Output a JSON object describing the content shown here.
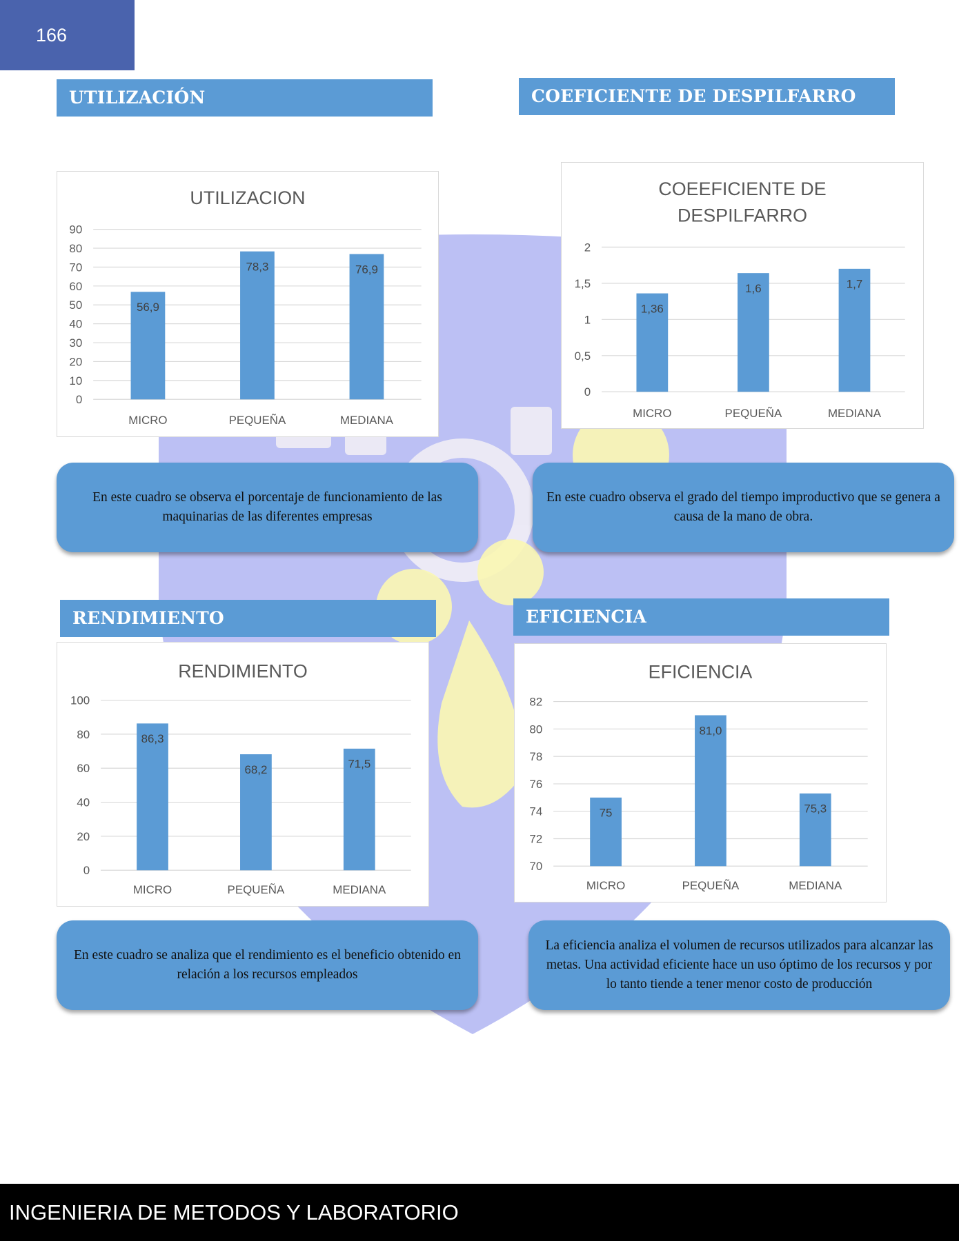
{
  "page": {
    "number": "166",
    "footer": "INGENIERIA DE METODOS Y LABORATORIO",
    "colors": {
      "header_bar": "#4a63ad",
      "section_bar": "#5b9bd5",
      "bar": "#5b9bd5",
      "footer": "#000000"
    }
  },
  "sections": {
    "utilizacion": "UTILIZACIÓN",
    "despilfarro": "COEFICIENTE DE DESPILFARRO",
    "rendimiento": "RENDIMIENTO",
    "eficiencia": "EFICIENCIA"
  },
  "notes": {
    "utilizacion": "En este cuadro se observa el porcentaje de funcionamiento de las maquinarias de las diferentes empresas",
    "despilfarro": "En este cuadro observa el grado del tiempo improductivo que se genera a causa de la mano de obra.",
    "rendimiento": "En este cuadro se analiza que el rendimiento es el beneficio obtenido en relación a los recursos empleados",
    "eficiencia": "La eficiencia analiza el volumen de recursos utilizados para alcanzar las metas. Una actividad eficiente hace un uso óptimo de los recursos y por lo tanto tiende a tener menor costo de producción"
  },
  "chart_data": [
    {
      "id": "utilizacion",
      "type": "bar",
      "title": [
        "UTILIZACION"
      ],
      "categories": [
        "MICRO",
        "PEQUEÑA",
        "MEDIANA"
      ],
      "values": [
        56.9,
        78.3,
        76.9
      ],
      "labels": [
        "56,9",
        "78,3",
        "76,9"
      ],
      "ylim": [
        0,
        90
      ],
      "yticks": [
        "0",
        "10",
        "20",
        "30",
        "40",
        "50",
        "60",
        "70",
        "80",
        "90"
      ],
      "grid": true
    },
    {
      "id": "despilfarro",
      "type": "bar",
      "title": [
        "COEEFICIENTE DE",
        "DESPILFARRO"
      ],
      "categories": [
        "MICRO",
        "PEQUEÑA",
        "MEDIANA"
      ],
      "values": [
        1.36,
        1.64,
        1.7
      ],
      "labels": [
        "1,36",
        "1,6",
        "1,7"
      ],
      "ylim": [
        0,
        2
      ],
      "yticks": [
        "0",
        "0,5",
        "1",
        "1,5",
        "2"
      ],
      "grid": true
    },
    {
      "id": "rendimiento",
      "type": "bar",
      "title": [
        "RENDIMIENTO"
      ],
      "categories": [
        "MICRO",
        "PEQUEÑA",
        "MEDIANA"
      ],
      "values": [
        86.3,
        68.2,
        71.5
      ],
      "labels": [
        "86,3",
        "68,2",
        "71,5"
      ],
      "ylim": [
        0,
        100
      ],
      "yticks": [
        "0",
        "20",
        "40",
        "60",
        "80",
        "100"
      ],
      "grid": true
    },
    {
      "id": "eficiencia",
      "type": "bar",
      "title": [
        "EFICIENCIA"
      ],
      "categories": [
        "MICRO",
        "PEQUEÑA",
        "MEDIANA"
      ],
      "values": [
        75,
        81.0,
        75.3
      ],
      "labels": [
        "75",
        "81,0",
        "75,3"
      ],
      "ylim": [
        70,
        82
      ],
      "yticks": [
        "70",
        "72",
        "74",
        "76",
        "78",
        "80",
        "82"
      ],
      "grid": true
    }
  ]
}
